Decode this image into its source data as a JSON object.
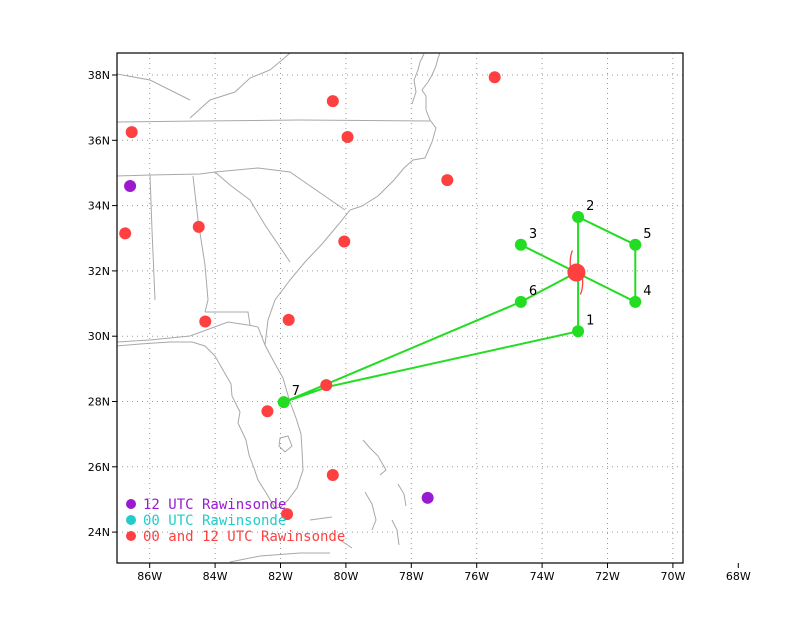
{
  "map": {
    "lon_range": [
      -87,
      -65
    ],
    "lat_range": [
      23,
      39
    ],
    "lon_ticks": [
      {
        "value": -86,
        "label": "86W"
      },
      {
        "value": -84,
        "label": "84W"
      },
      {
        "value": -82,
        "label": "82W"
      },
      {
        "value": -80,
        "label": "80W"
      },
      {
        "value": -78,
        "label": "78W"
      },
      {
        "value": -76,
        "label": "76W"
      },
      {
        "value": -74,
        "label": "74W"
      },
      {
        "value": -72,
        "label": "72W"
      },
      {
        "value": -70,
        "label": "70W"
      },
      {
        "value": -68,
        "label": "68W"
      }
    ],
    "lat_ticks": [
      {
        "value": 24,
        "label": "24N"
      },
      {
        "value": 26,
        "label": "26N"
      },
      {
        "value": 28,
        "label": "28N"
      },
      {
        "value": 30,
        "label": "30N"
      },
      {
        "value": 32,
        "label": "32N"
      },
      {
        "value": 34,
        "label": "34N"
      },
      {
        "value": 36,
        "label": "36N"
      },
      {
        "value": 38,
        "label": "38N"
      }
    ],
    "grid": true
  },
  "colors": {
    "both_rawinsonde": "#ff4040",
    "rawinsonde_12utc": "#9a1ad0",
    "rawinsonde_00utc": "#22cccc",
    "track": "#22dd22",
    "storm": "#ff4040",
    "coast": "#a8a8a8"
  },
  "storm": {
    "lon": -72.95,
    "lat": 31.95
  },
  "waypoints": [
    {
      "label": "1",
      "lon": -72.9,
      "lat": 30.15
    },
    {
      "label": "2",
      "lon": -72.9,
      "lat": 33.65
    },
    {
      "label": "3",
      "lon": -74.65,
      "lat": 32.8
    },
    {
      "label": "4",
      "lon": -71.15,
      "lat": 31.05
    },
    {
      "label": "5",
      "lon": -71.15,
      "lat": 32.8
    },
    {
      "label": "6",
      "lon": -74.65,
      "lat": 31.05
    },
    {
      "label": "7",
      "lon": -81.9,
      "lat": 27.98
    }
  ],
  "flight_track": [
    [
      -80.55,
      28.45
    ],
    [
      -72.9,
      30.15
    ],
    [
      -72.9,
      33.65
    ],
    [
      -71.15,
      32.8
    ],
    [
      -71.15,
      31.05
    ],
    [
      -74.65,
      32.8
    ],
    [
      -72.95,
      31.95
    ],
    [
      -74.65,
      31.05
    ],
    [
      -81.9,
      27.98
    ],
    [
      -80.55,
      28.45
    ]
  ],
  "rawinsondes": [
    {
      "lon": -75.45,
      "lat": 37.93,
      "type": "both"
    },
    {
      "lon": -80.4,
      "lat": 37.2,
      "type": "both"
    },
    {
      "lon": -86.55,
      "lat": 36.25,
      "type": "both"
    },
    {
      "lon": -79.95,
      "lat": 36.1,
      "type": "both"
    },
    {
      "lon": -86.6,
      "lat": 34.6,
      "type": "12utc"
    },
    {
      "lon": -76.9,
      "lat": 34.78,
      "type": "both"
    },
    {
      "lon": -84.5,
      "lat": 33.35,
      "type": "both"
    },
    {
      "lon": -86.75,
      "lat": 33.15,
      "type": "both"
    },
    {
      "lon": -80.05,
      "lat": 32.9,
      "type": "both"
    },
    {
      "lon": -84.3,
      "lat": 30.45,
      "type": "both"
    },
    {
      "lon": -81.75,
      "lat": 30.5,
      "type": "both"
    },
    {
      "lon": -80.6,
      "lat": 28.5,
      "type": "both"
    },
    {
      "lon": -82.4,
      "lat": 27.7,
      "type": "both"
    },
    {
      "lon": -80.4,
      "lat": 25.75,
      "type": "both"
    },
    {
      "lon": -77.5,
      "lat": 25.05,
      "type": "12utc"
    },
    {
      "lon": -81.8,
      "lat": 24.55,
      "type": "both"
    }
  ],
  "legend": [
    {
      "label": "12 UTC Rawinsonde",
      "color": "#9a1ad0"
    },
    {
      "label": "00 UTC Rawinsonde",
      "color": "#22cccc"
    },
    {
      "label": "00 and 12 UTC Rawinsonde",
      "color": "#ff4040"
    }
  ]
}
